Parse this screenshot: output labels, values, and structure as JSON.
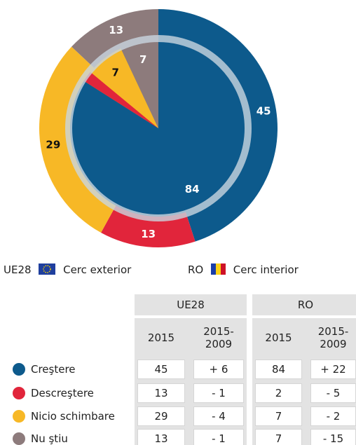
{
  "chart_data": [
    {
      "type": "donut",
      "name": "UE28",
      "label": "Cerc exterior",
      "categories": [
        "Creştere",
        "Descreştere",
        "Nicio schimbare",
        "Nu ştiu"
      ],
      "values": [
        45,
        13,
        29,
        13
      ],
      "colors": [
        "#0d5a8c",
        "#e1253b",
        "#f7b826",
        "#8d7b7c"
      ]
    },
    {
      "type": "pie",
      "name": "RO",
      "label": "Cerc interior",
      "categories": [
        "Creştere",
        "Descreştere",
        "Nicio schimbare",
        "Nu ştiu"
      ],
      "values": [
        84,
        2,
        7,
        7
      ],
      "colors": [
        "#0d5a8c",
        "#e1253b",
        "#f7b826",
        "#8d7b7c"
      ]
    }
  ],
  "table": {
    "columns": [
      "2015",
      "2015-2009"
    ],
    "changes": [
      [
        "+ 6",
        "- 1",
        "- 4",
        "- 1"
      ],
      [
        "+ 22",
        "- 5",
        "- 2",
        "- 15"
      ]
    ]
  }
}
